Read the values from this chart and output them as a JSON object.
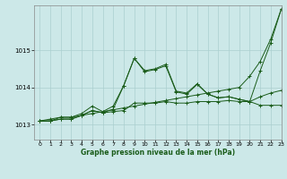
{
  "title": "Graphe pression niveau de la mer (hPa)",
  "background_color": "#cce8e8",
  "grid_color": "#aacfcf",
  "line_color": "#1a5c1a",
  "xlim": [
    -0.5,
    23
  ],
  "ylim": [
    1012.6,
    1016.2
  ],
  "yticks": [
    1013,
    1014,
    1015
  ],
  "xticks": [
    0,
    1,
    2,
    3,
    4,
    5,
    6,
    7,
    8,
    9,
    10,
    11,
    12,
    13,
    14,
    15,
    16,
    17,
    18,
    19,
    20,
    21,
    22,
    23
  ],
  "series": [
    [
      1013.1,
      1013.15,
      1013.2,
      1013.2,
      1013.25,
      1013.3,
      1013.35,
      1013.4,
      1013.45,
      1013.5,
      1013.55,
      1013.6,
      1013.65,
      1013.7,
      1013.75,
      1013.8,
      1013.85,
      1013.9,
      1013.95,
      1014.0,
      1014.3,
      1014.7,
      1015.3,
      1016.1
    ],
    [
      1013.1,
      1013.1,
      1013.2,
      1013.2,
      1013.3,
      1013.5,
      1013.35,
      1013.5,
      1014.05,
      1014.78,
      1014.45,
      1014.5,
      1014.62,
      1013.9,
      1013.85,
      1014.1,
      1013.82,
      1013.72,
      1013.75,
      1013.68,
      1013.62,
      1014.45,
      1015.2,
      1016.1
    ],
    [
      1013.1,
      1013.1,
      1013.15,
      1013.15,
      1013.25,
      1013.38,
      1013.32,
      1013.35,
      1013.38,
      1013.58,
      1013.58,
      1013.58,
      1013.62,
      1013.58,
      1013.58,
      1013.62,
      1013.62,
      1013.62,
      1013.65,
      1013.62,
      1013.62,
      1013.75,
      1013.85,
      1013.92
    ],
    [
      1013.1,
      1013.1,
      1013.15,
      1013.15,
      1013.25,
      1013.38,
      1013.32,
      1013.42,
      1014.05,
      1014.78,
      1014.42,
      1014.48,
      1014.58,
      1013.88,
      1013.82,
      1014.08,
      1013.82,
      1013.72,
      1013.75,
      1013.68,
      1013.62,
      1013.52,
      1013.52,
      1013.52
    ]
  ]
}
